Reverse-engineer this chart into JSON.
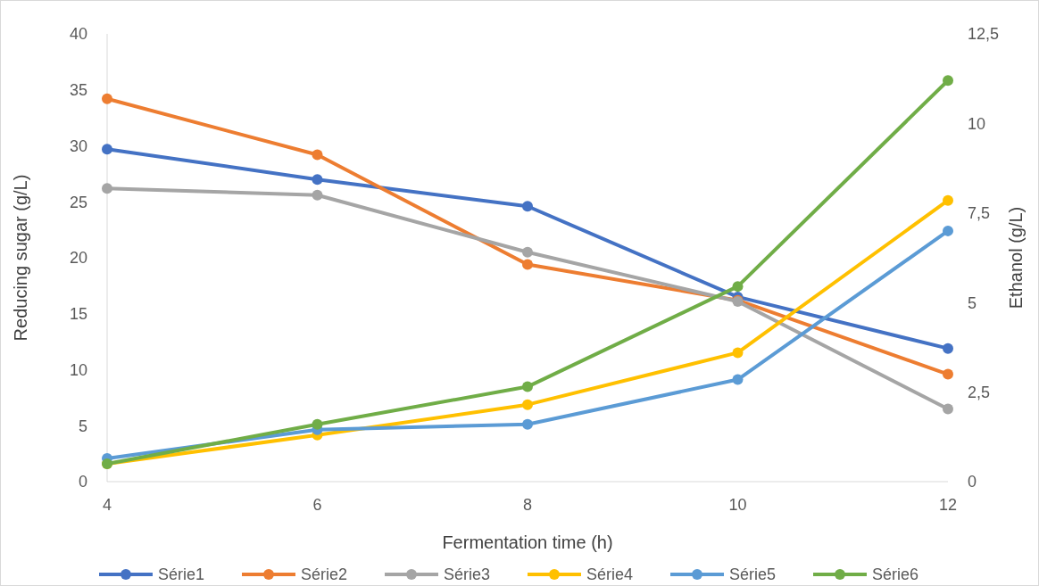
{
  "chart_data": {
    "type": "line",
    "xlabel": "Fermentation time (h)",
    "ylabel": "Reducing sugar (g/L)",
    "y2label": "Ethanol (g/L)",
    "x": [
      4,
      6,
      8,
      10,
      12
    ],
    "xlim": [
      4,
      12
    ],
    "xticks": [
      4,
      6,
      8,
      10,
      12
    ],
    "ylim": [
      0,
      40
    ],
    "yticks": [
      0,
      5,
      10,
      15,
      20,
      25,
      30,
      35,
      40
    ],
    "y2lim": [
      0,
      12.5
    ],
    "y2ticks": [
      {
        "value": 0,
        "label": "0"
      },
      {
        "value": 2.5,
        "label": "2,5"
      },
      {
        "value": 5,
        "label": "5"
      },
      {
        "value": 7.5,
        "label": "7,5"
      },
      {
        "value": 10,
        "label": "10"
      },
      {
        "value": 12.5,
        "label": "12,5"
      }
    ],
    "marker": "circle",
    "line_style": "solid",
    "grid": false,
    "legend": "bottom",
    "series": [
      {
        "name": "Série1",
        "color": "#4472c4",
        "values": [
          29.7,
          27.0,
          24.6,
          16.5,
          11.9
        ]
      },
      {
        "name": "Série2",
        "color": "#ed7d31",
        "values": [
          34.2,
          29.2,
          19.4,
          16.2,
          9.6
        ]
      },
      {
        "name": "Série3",
        "color": "#a5a5a5",
        "values": [
          26.2,
          25.6,
          20.5,
          16.1,
          6.5
        ]
      },
      {
        "name": "Série4",
        "color": "#ffc000",
        "axis": "y2",
        "values": [
          0.5,
          1.3,
          2.15,
          3.6,
          7.85
        ]
      },
      {
        "name": "Série5",
        "color": "#5b9bd5",
        "axis": "y2",
        "values": [
          0.65,
          1.45,
          1.6,
          2.85,
          7.0
        ]
      },
      {
        "name": "Série6",
        "color": "#70ad47",
        "axis": "y2",
        "values": [
          0.5,
          1.6,
          2.65,
          5.45,
          11.2
        ]
      }
    ]
  }
}
